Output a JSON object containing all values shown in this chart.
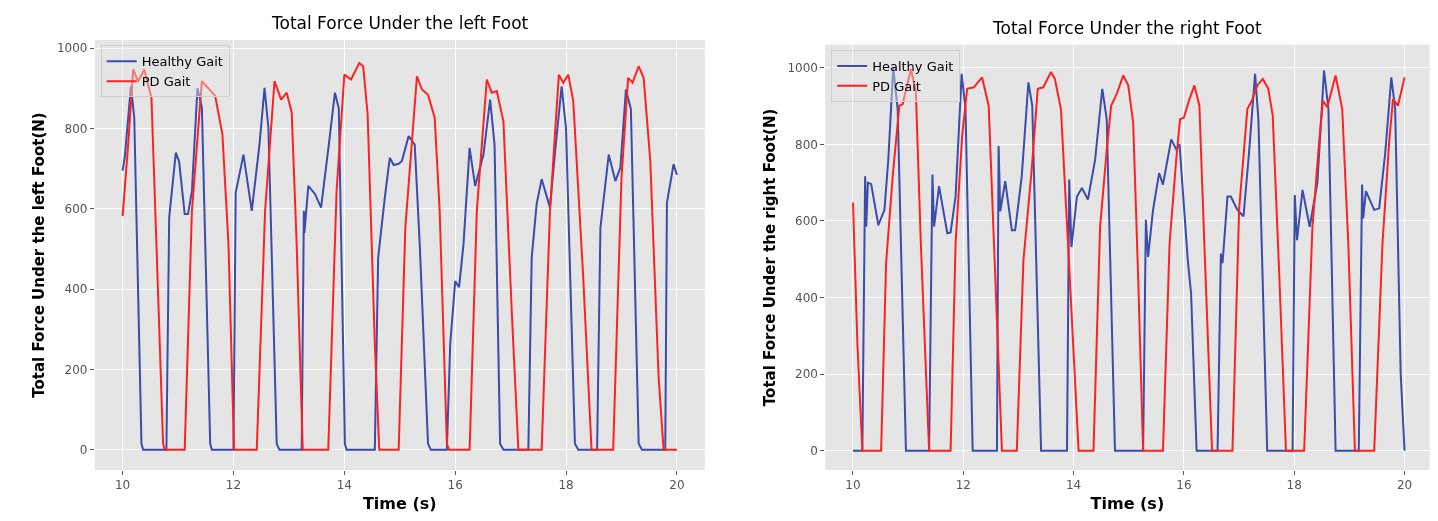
{
  "chart_data": [
    {
      "type": "line",
      "title": "Total Force Under the left Foot",
      "xlabel": "Time (s)",
      "ylabel": "Total Force Under the left Foot(N)",
      "xlim": [
        9.5,
        20.5
      ],
      "xticks": [
        10,
        12,
        14,
        16,
        18,
        20
      ],
      "ylim": [
        -50,
        1020
      ],
      "yticks": [
        0,
        200,
        400,
        600,
        800,
        1000
      ],
      "grid": true,
      "legend": "top left",
      "series": [
        {
          "name": "Healthy Gait",
          "color": "#3b4cab",
          "x": [
            10.0,
            10.04,
            10.15,
            10.21,
            10.34,
            10.37,
            10.79,
            10.84,
            10.96,
            11.02,
            11.12,
            11.18,
            11.25,
            11.35,
            11.43,
            11.58,
            11.61,
            12.0,
            12.04,
            12.18,
            12.33,
            12.47,
            12.56,
            12.63,
            12.78,
            12.83,
            13.23,
            13.27,
            13.28,
            13.35,
            13.47,
            13.58,
            13.72,
            13.83,
            13.9,
            14.01,
            14.04,
            14.55,
            14.61,
            14.73,
            14.82,
            14.89,
            14.98,
            15.04,
            15.16,
            15.27,
            15.36,
            15.51,
            15.56,
            15.85,
            15.91,
            16.0,
            16.07,
            16.15,
            16.26,
            16.36,
            16.51,
            16.63,
            16.71,
            16.81,
            16.87,
            17.32,
            17.38,
            17.47,
            17.56,
            17.71,
            17.8,
            17.92,
            18.0,
            18.16,
            18.22,
            18.56,
            18.62,
            18.77,
            18.89,
            18.98,
            19.08,
            19.17,
            19.31,
            19.37,
            19.79,
            19.82,
            19.94,
            20.0
          ],
          "values": [
            695,
            730,
            905,
            827,
            15,
            0,
            0,
            578,
            740,
            717,
            587,
            587,
            644,
            900,
            852,
            15,
            0,
            0,
            640,
            735,
            595,
            761,
            901,
            802,
            15,
            0,
            0,
            595,
            540,
            657,
            637,
            603,
            760,
            889,
            850,
            15,
            0,
            0,
            478,
            628,
            727,
            709,
            712,
            720,
            781,
            760,
            512,
            15,
            0,
            0,
            263,
            420,
            405,
            512,
            752,
            657,
            735,
            872,
            760,
            15,
            0,
            0,
            478,
            612,
            674,
            603,
            739,
            905,
            800,
            15,
            0,
            0,
            553,
            735,
            669,
            702,
            897,
            848,
            15,
            0,
            0,
            615,
            711,
            685
          ]
        },
        {
          "name": "PD Gait",
          "color": "#ff2121",
          "x": [
            10.0,
            10.1,
            10.19,
            10.28,
            10.39,
            10.52,
            10.61,
            10.73,
            10.76,
            11.12,
            11.25,
            11.43,
            11.67,
            11.8,
            11.91,
            12.01,
            12.42,
            12.57,
            12.74,
            12.86,
            12.96,
            13.05,
            13.14,
            13.25,
            13.71,
            13.86,
            14.0,
            14.12,
            14.27,
            14.34,
            14.42,
            14.55,
            14.63,
            14.98,
            15.1,
            15.31,
            15.4,
            15.51,
            15.63,
            15.72,
            15.85,
            15.89,
            16.26,
            16.39,
            16.57,
            16.66,
            16.75,
            16.87,
            17.02,
            17.14,
            17.56,
            17.71,
            17.87,
            17.95,
            18.04,
            18.13,
            18.31,
            18.46,
            18.85,
            19.0,
            19.12,
            19.2,
            19.31,
            19.4,
            19.52,
            19.67,
            19.76,
            20.0
          ],
          "values": [
            582,
            760,
            947,
            917,
            947,
            876,
            512,
            15,
            0,
            0,
            595,
            918,
            881,
            786,
            512,
            0,
            0,
            595,
            918,
            872,
            889,
            840,
            512,
            0,
            0,
            644,
            934,
            922,
            963,
            955,
            836,
            264,
            0,
            0,
            553,
            930,
            897,
            884,
            827,
            595,
            15,
            0,
            0,
            595,
            922,
            889,
            893,
            818,
            346,
            0,
            0,
            595,
            934,
            914,
            934,
            868,
            429,
            0,
            0,
            677,
            926,
            914,
            955,
            926,
            719,
            180,
            0,
            0
          ]
        }
      ]
    },
    {
      "type": "line",
      "title": "Total Force Under the right Foot",
      "xlabel": "Time (s)",
      "ylabel": "Total Force Under the right Foot(N)",
      "xlim": [
        9.5,
        20.45
      ],
      "xticks": [
        10,
        12,
        14,
        16,
        18,
        20
      ],
      "ylim": [
        -50,
        1060
      ],
      "yticks": [
        0,
        200,
        400,
        600,
        800,
        1000
      ],
      "grid": true,
      "legend": "top left",
      "series": [
        {
          "name": "Healthy Gait",
          "color": "#3b4cab",
          "x": [
            10.0,
            10.17,
            10.22,
            10.24,
            10.27,
            10.33,
            10.46,
            10.57,
            10.64,
            10.73,
            10.81,
            10.96,
            11.38,
            11.44,
            11.47,
            11.56,
            11.71,
            11.77,
            11.86,
            11.97,
            12.04,
            12.17,
            12.61,
            12.64,
            12.67,
            12.76,
            12.88,
            12.94,
            13.06,
            13.18,
            13.25,
            13.41,
            13.88,
            13.92,
            13.96,
            14.06,
            14.15,
            14.26,
            14.39,
            14.52,
            14.6,
            14.75,
            15.26,
            15.31,
            15.35,
            15.44,
            15.55,
            15.62,
            15.77,
            15.86,
            15.92,
            16.07,
            16.13,
            16.23,
            16.61,
            16.67,
            16.7,
            16.79,
            16.85,
            16.97,
            17.08,
            17.18,
            17.29,
            17.35,
            17.51,
            17.97,
            18.01,
            18.05,
            18.15,
            18.28,
            18.42,
            18.54,
            18.62,
            18.75,
            19.17,
            19.23,
            19.25,
            19.3,
            19.45,
            19.54,
            19.65,
            19.76,
            19.83,
            19.93,
            20.0
          ],
          "values": [
            0,
            0,
            717,
            585,
            700,
            696,
            589,
            629,
            760,
            1000,
            892,
            0,
            0,
            721,
            585,
            691,
            568,
            570,
            664,
            984,
            892,
            0,
            0,
            796,
            625,
            704,
            576,
            576,
            717,
            962,
            901,
            0,
            0,
            708,
            532,
            664,
            686,
            656,
            760,
            945,
            866,
            0,
            0,
            603,
            506,
            629,
            725,
            695,
            813,
            787,
            800,
            497,
            410,
            0,
            0,
            515,
            490,
            664,
            664,
            629,
            612,
            778,
            984,
            866,
            0,
            0,
            668,
            550,
            681,
            585,
            700,
            993,
            892,
            0,
            0,
            695,
            607,
            678,
            629,
            633,
            778,
            975,
            892,
            200,
            0
          ]
        },
        {
          "name": "PD Gait",
          "color": "#ff2121",
          "x": [
            10.0,
            10.08,
            10.17,
            10.51,
            10.6,
            10.72,
            10.84,
            10.9,
            11.05,
            11.14,
            11.23,
            11.38,
            11.77,
            11.86,
            11.98,
            12.07,
            12.19,
            12.34,
            12.46,
            12.58,
            12.7,
            12.97,
            13.09,
            13.24,
            13.35,
            13.45,
            13.59,
            13.66,
            13.77,
            13.93,
            14.09,
            14.36,
            14.48,
            14.6,
            14.68,
            14.78,
            14.9,
            14.99,
            15.08,
            15.17,
            15.26,
            15.62,
            15.74,
            15.86,
            15.93,
            16.0,
            16.09,
            16.19,
            16.28,
            16.37,
            16.51,
            16.88,
            17.0,
            17.15,
            17.23,
            17.33,
            17.43,
            17.53,
            17.61,
            17.73,
            17.85,
            18.18,
            18.33,
            18.45,
            18.52,
            18.6,
            18.75,
            18.87,
            18.98,
            19.1,
            19.45,
            19.6,
            19.72,
            19.79,
            19.88,
            20.0
          ],
          "values": [
            648,
            279,
            0,
            0,
            489,
            717,
            901,
            905,
            997,
            937,
            542,
            0,
            0,
            542,
            823,
            945,
            949,
            975,
            901,
            453,
            0,
            0,
            497,
            734,
            945,
            949,
            989,
            971,
            892,
            453,
            0,
            0,
            585,
            785,
            901,
            931,
            980,
            954,
            857,
            453,
            0,
            0,
            542,
            760,
            866,
            870,
            914,
            954,
            901,
            542,
            0,
            0,
            629,
            892,
            914,
            954,
            971,
            945,
            875,
            453,
            0,
            0,
            585,
            804,
            914,
            897,
            980,
            892,
            542,
            0,
            0,
            542,
            804,
            918,
            901,
            975
          ]
        }
      ]
    }
  ]
}
